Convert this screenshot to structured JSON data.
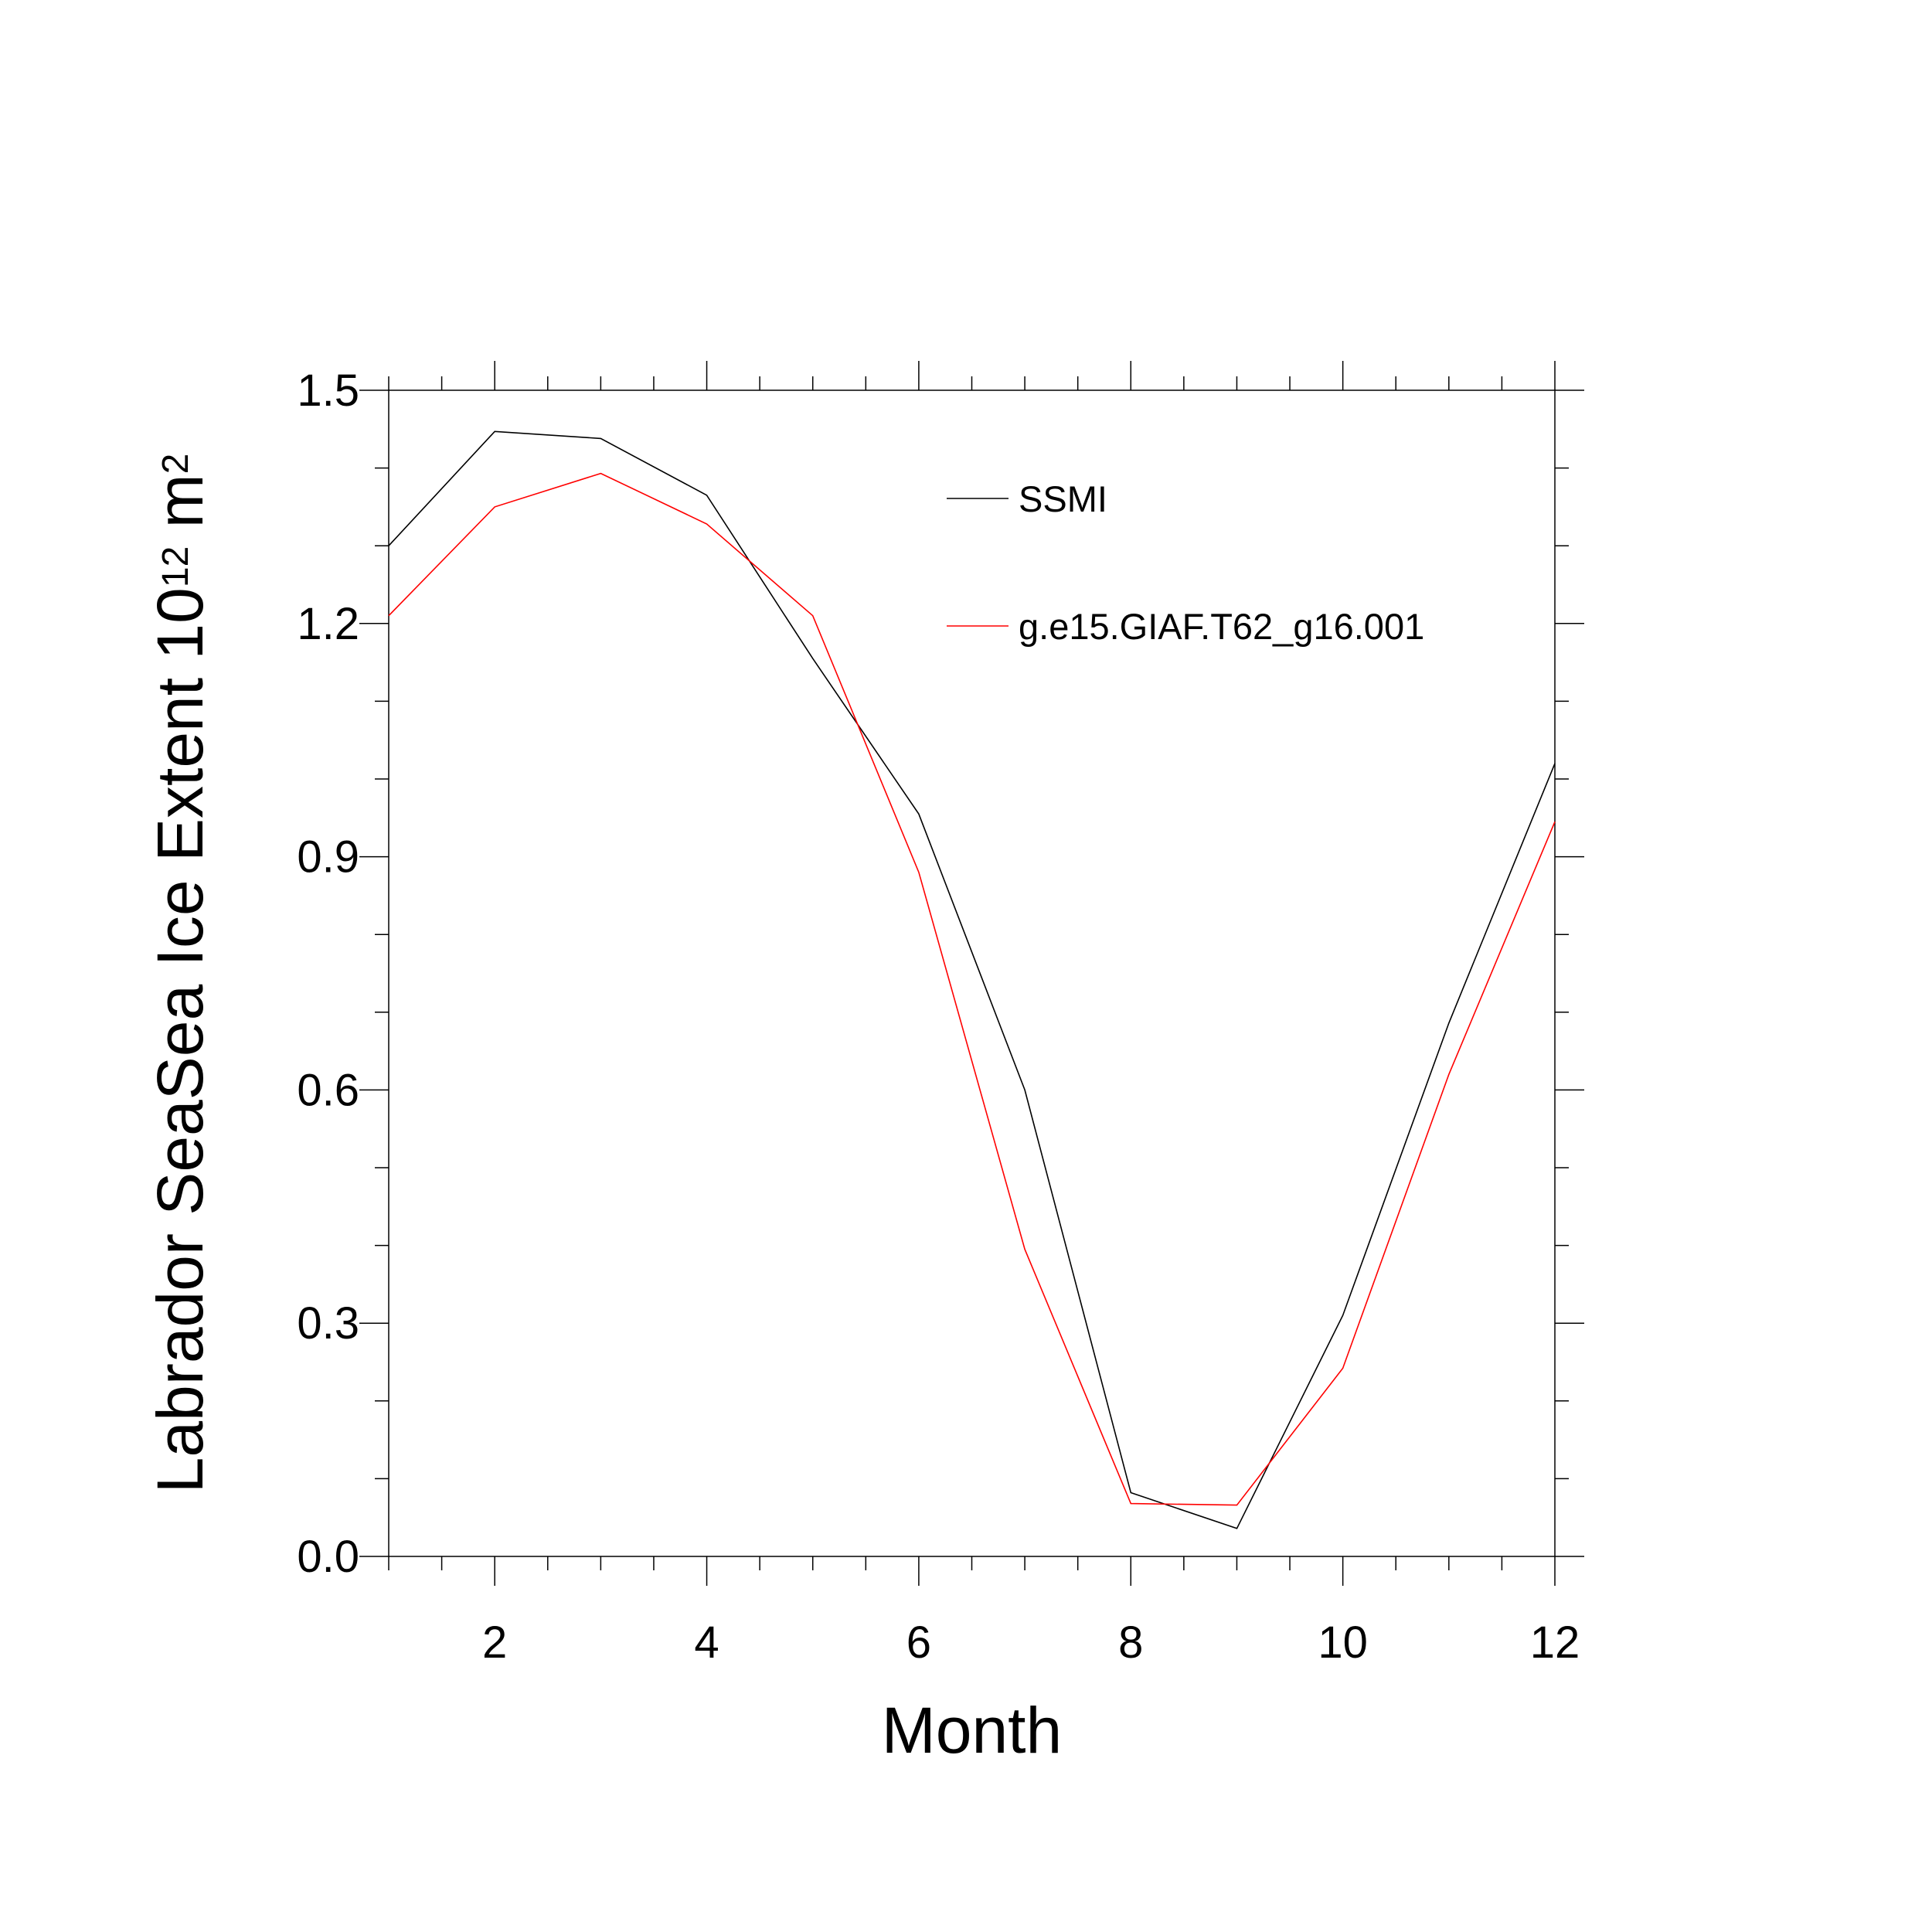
{
  "chart_data": {
    "type": "line",
    "xlabel": "Month",
    "ylabel_main": "Labrador SeaSea Ice Extent 10",
    "ylabel_sup": "12",
    "ylabel_unit": " m",
    "ylabel_unit_sup": "2",
    "xlim": [
      1,
      12
    ],
    "ylim": [
      0.0,
      1.5
    ],
    "x_ticks": [
      2,
      4,
      6,
      8,
      10,
      12
    ],
    "x_tick_labels": [
      "2",
      "4",
      "6",
      "8",
      "10",
      "12"
    ],
    "y_ticks": [
      0.0,
      0.3,
      0.6,
      0.9,
      1.2,
      1.5
    ],
    "y_tick_labels": [
      "0.0",
      "0.3",
      "0.6",
      "0.9",
      "1.2",
      "1.5"
    ],
    "grid": false,
    "legend_position": "top-right",
    "x": [
      1,
      2,
      3,
      4,
      5,
      6,
      7,
      8,
      9,
      10,
      11,
      12
    ],
    "series": [
      {
        "name": "SSMI",
        "color": "#000000",
        "values": [
          1.3,
          1.447,
          1.438,
          1.365,
          1.155,
          0.955,
          0.6,
          0.082,
          0.036,
          0.31,
          0.686,
          1.02
        ]
      },
      {
        "name": "g.e15.GIAF.T62_g16.001",
        "color": "#ff0000",
        "values": [
          1.21,
          1.35,
          1.393,
          1.328,
          1.21,
          0.88,
          0.395,
          0.068,
          0.066,
          0.242,
          0.62,
          0.945
        ]
      }
    ]
  }
}
